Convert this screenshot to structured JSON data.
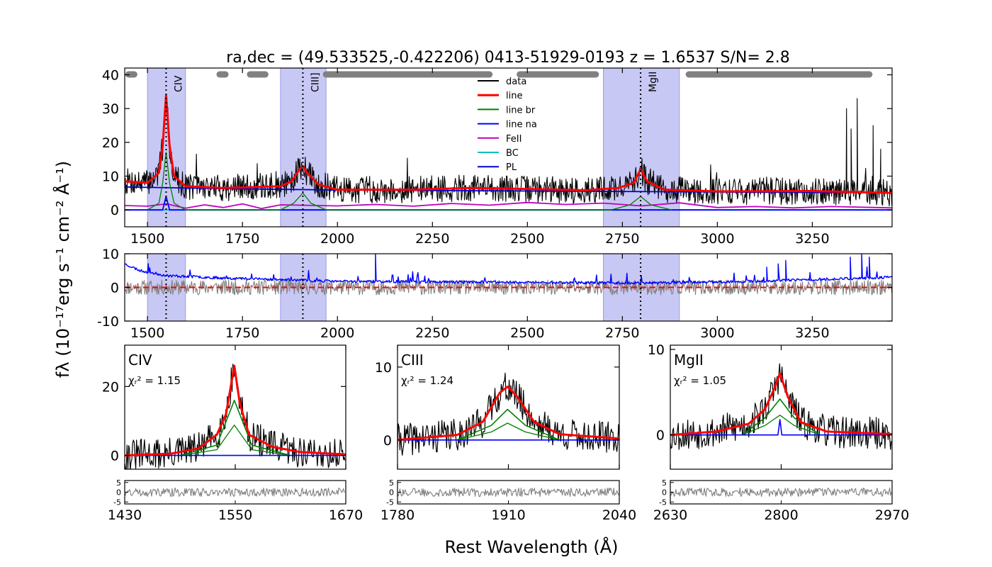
{
  "figure": {
    "title": "ra,dec = (49.533525,-0.422206)   0413-51929-0193   z = 1.6537   S/N= 2.8",
    "ylabel": "fλ (10⁻¹⁷erg s⁻¹ cm⁻² Å⁻¹)",
    "xlabel": "Rest Wavelength (Å)"
  },
  "colors": {
    "data": "#000000",
    "line": "#ff0000",
    "line_br": "#008000",
    "line_na": "#0000ff",
    "FeII": "#bf00bf",
    "BC": "#00bfbf",
    "PL": "#0000cd",
    "shade": "#c8c8f4",
    "windows": "#808080",
    "resid": "#808080",
    "error": "#0000ff",
    "zero": "#ff0000"
  },
  "chart_data": [
    {
      "id": "top",
      "type": "line",
      "xlim": [
        1440,
        3460
      ],
      "ylim": [
        -5,
        42
      ],
      "xticks": [
        1500,
        1750,
        2000,
        2250,
        2500,
        2750,
        3000,
        3250
      ],
      "yticks": [
        0,
        10,
        20,
        30,
        40
      ],
      "shaded_regions": [
        [
          1500,
          1600
        ],
        [
          1850,
          1970
        ],
        [
          2700,
          2900
        ]
      ],
      "line_markers": [
        {
          "label": "CIV",
          "x": 1549
        },
        {
          "label": "CIII]",
          "x": 1909
        },
        {
          "label": "MgII",
          "x": 2798
        }
      ],
      "continuum_windows": [
        [
          1450,
          1465
        ],
        [
          1690,
          1705
        ],
        [
          1770,
          1810
        ],
        [
          1970,
          2400
        ],
        [
          2480,
          2680
        ],
        [
          2925,
          3400
        ]
      ],
      "legend": {
        "position": "upper-center",
        "entries": [
          "data",
          "line",
          "line br",
          "line na",
          "FeII",
          "BC",
          "PL"
        ]
      },
      "series": [
        {
          "name": "data",
          "points": [
            [
              1440,
              8.5
            ],
            [
              1500,
              8.0
            ],
            [
              1530,
              9.5
            ],
            [
              1549,
              36.0
            ],
            [
              1560,
              10.0
            ],
            [
              1600,
              7.0
            ],
            [
              1700,
              6.5
            ],
            [
              1880,
              7.0
            ],
            [
              1909,
              17.0
            ],
            [
              1930,
              7.0
            ],
            [
              2100,
              5.5
            ],
            [
              2300,
              6.0
            ],
            [
              2500,
              6.0
            ],
            [
              2700,
              6.0
            ],
            [
              2798,
              11.0
            ],
            [
              2850,
              6.0
            ],
            [
              3000,
              5.0
            ],
            [
              3250,
              5.0
            ],
            [
              3460,
              5.0
            ]
          ]
        },
        {
          "name": "line",
          "points": [
            [
              1440,
              8.5
            ],
            [
              1500,
              8.0
            ],
            [
              1530,
              11.0
            ],
            [
              1540,
              19.0
            ],
            [
              1549,
              34.0
            ],
            [
              1558,
              19.0
            ],
            [
              1570,
              10.0
            ],
            [
              1600,
              7.0
            ],
            [
              1700,
              6.5
            ],
            [
              1850,
              7.0
            ],
            [
              1880,
              8.5
            ],
            [
              1900,
              12.0
            ],
            [
              1909,
              13.0
            ],
            [
              1920,
              11.0
            ],
            [
              1950,
              7.5
            ],
            [
              2000,
              6.0
            ],
            [
              2200,
              6.0
            ],
            [
              2350,
              6.5
            ],
            [
              2500,
              6.2
            ],
            [
              2650,
              5.8
            ],
            [
              2740,
              6.5
            ],
            [
              2780,
              8.0
            ],
            [
              2798,
              12.0
            ],
            [
              2815,
              8.5
            ],
            [
              2860,
              6.0
            ],
            [
              3000,
              5.5
            ],
            [
              3250,
              5.6
            ],
            [
              3460,
              5.0
            ]
          ]
        },
        {
          "name": "line br",
          "points": [
            [
              1500,
              0
            ],
            [
              1530,
              2.0
            ],
            [
              1540,
              8.0
            ],
            [
              1549,
              17.0
            ],
            [
              1558,
              8.0
            ],
            [
              1570,
              2.0
            ],
            [
              1600,
              0
            ],
            [
              1850,
              0
            ],
            [
              1885,
              2.0
            ],
            [
              1909,
              5.0
            ],
            [
              1930,
              2.0
            ],
            [
              1970,
              0
            ],
            [
              2720,
              0
            ],
            [
              2770,
              1.5
            ],
            [
              2798,
              4.0
            ],
            [
              2825,
              1.5
            ],
            [
              2880,
              0
            ]
          ]
        },
        {
          "name": "line na",
          "points": [
            [
              1440,
              0
            ],
            [
              1540,
              0
            ],
            [
              1549,
              4.0
            ],
            [
              1558,
              0
            ],
            [
              3460,
              0
            ]
          ]
        },
        {
          "name": "FeII",
          "points": [
            [
              1440,
              1.3
            ],
            [
              1500,
              1.1
            ],
            [
              1550,
              1.8
            ],
            [
              1600,
              0.5
            ],
            [
              1650,
              1.5
            ],
            [
              1700,
              0.7
            ],
            [
              1750,
              1.8
            ],
            [
              1800,
              0.4
            ],
            [
              1850,
              1.5
            ],
            [
              2000,
              1.2
            ],
            [
              2100,
              1.6
            ],
            [
              2200,
              1.1
            ],
            [
              2300,
              1.9
            ],
            [
              2400,
              1.4
            ],
            [
              2500,
              2.2
            ],
            [
              2600,
              1.6
            ],
            [
              2700,
              2.0
            ],
            [
              2800,
              1.2
            ],
            [
              2900,
              2.1
            ],
            [
              3000,
              0.7
            ],
            [
              3100,
              1.0
            ],
            [
              3200,
              0.6
            ],
            [
              3300,
              1.0
            ],
            [
              3460,
              0.6
            ]
          ]
        },
        {
          "name": "BC",
          "points": [
            [
              1440,
              0
            ],
            [
              3460,
              0
            ]
          ]
        },
        {
          "name": "PL",
          "points": [
            [
              1440,
              6.8
            ],
            [
              1700,
              6.3
            ],
            [
              2000,
              5.9
            ],
            [
              2500,
              5.6
            ],
            [
              3000,
              5.3
            ],
            [
              3460,
              5.1
            ]
          ]
        }
      ]
    },
    {
      "id": "residual",
      "type": "line",
      "xlim": [
        1440,
        3460
      ],
      "ylim": [
        -10,
        10
      ],
      "xticks": [
        1500,
        1750,
        2000,
        2250,
        2500,
        2750,
        3000,
        3250
      ],
      "yticks": [
        -10,
        0,
        10
      ],
      "shaded_regions": [
        [
          1500,
          1600
        ],
        [
          1850,
          1970
        ],
        [
          2700,
          2900
        ]
      ],
      "line_markers": [
        {
          "x": 1549
        },
        {
          "x": 1909
        },
        {
          "x": 2798
        }
      ],
      "series": [
        {
          "name": "residual",
          "points": [
            [
              1440,
              0
            ],
            [
              3460,
              0
            ]
          ]
        },
        {
          "name": "error",
          "points": [
            [
              1440,
              7.0
            ],
            [
              1480,
              5.0
            ],
            [
              1550,
              3.5
            ],
            [
              1700,
              2.8
            ],
            [
              2000,
              1.8
            ],
            [
              2500,
              1.5
            ],
            [
              2800,
              1.3
            ],
            [
              3100,
              1.8
            ],
            [
              3300,
              2.5
            ],
            [
              3460,
              3.0
            ]
          ]
        },
        {
          "name": "zero",
          "points": [
            [
              1440,
              0
            ],
            [
              3460,
              0
            ]
          ]
        }
      ]
    },
    {
      "id": "civ",
      "type": "line",
      "label": "CIV",
      "chi2": "1.15",
      "xlim": [
        1430,
        1670
      ],
      "ylim": [
        -4,
        32
      ],
      "xticks": [
        1430,
        1550,
        1670
      ],
      "yticks": [
        0,
        20
      ],
      "series": [
        {
          "name": "line",
          "points": [
            [
              1430,
              0
            ],
            [
              1480,
              0.5
            ],
            [
              1510,
              2.0
            ],
            [
              1530,
              6.0
            ],
            [
              1540,
              12.0
            ],
            [
              1549,
              26.0
            ],
            [
              1555,
              15.0
            ],
            [
              1565,
              6.0
            ],
            [
              1590,
              2.5
            ],
            [
              1620,
              1.0
            ],
            [
              1670,
              0.3
            ]
          ]
        },
        {
          "name": "line br",
          "points": [
            [
              1490,
              0
            ],
            [
              1530,
              3.0
            ],
            [
              1549,
              16.0
            ],
            [
              1568,
              3.0
            ],
            [
              1610,
              0
            ]
          ]
        },
        {
          "name": "line na",
          "points": [
            [
              1430,
              0
            ],
            [
              1670,
              0
            ]
          ]
        }
      ],
      "resid_yticks": [
        -5,
        0,
        5
      ]
    },
    {
      "id": "ciii",
      "type": "line",
      "label": "CIII",
      "chi2": "1.24",
      "xlim": [
        1780,
        2040
      ],
      "ylim": [
        -4,
        13
      ],
      "xticks": [
        1780,
        1910,
        2040
      ],
      "yticks": [
        0,
        10
      ],
      "series": [
        {
          "name": "line",
          "points": [
            [
              1780,
              0
            ],
            [
              1850,
              0.7
            ],
            [
              1880,
              2.5
            ],
            [
              1900,
              6.5
            ],
            [
              1909,
              7.3
            ],
            [
              1920,
              6.0
            ],
            [
              1940,
              2.5
            ],
            [
              1970,
              0.8
            ],
            [
              2040,
              0.2
            ]
          ]
        },
        {
          "name": "line br",
          "points": [
            [
              1850,
              0
            ],
            [
              1890,
              2.0
            ],
            [
              1909,
              4.2
            ],
            [
              1930,
              2.0
            ],
            [
              1970,
              0
            ]
          ]
        },
        {
          "name": "line na",
          "points": [
            [
              1780,
              0
            ],
            [
              2040,
              0
            ]
          ]
        }
      ],
      "resid_yticks": [
        -5,
        0,
        5
      ]
    },
    {
      "id": "mgii",
      "type": "line",
      "label": "MgII",
      "chi2": "1.05",
      "xlim": [
        2630,
        2970
      ],
      "ylim": [
        -4,
        10.5
      ],
      "xticks": [
        2630,
        2800,
        2970
      ],
      "yticks": [
        0,
        10
      ],
      "series": [
        {
          "name": "line",
          "points": [
            [
              2630,
              0
            ],
            [
              2700,
              0.4
            ],
            [
              2750,
              1.3
            ],
            [
              2775,
              3.0
            ],
            [
              2790,
              5.5
            ],
            [
              2798,
              7.2
            ],
            [
              2810,
              4.5
            ],
            [
              2830,
              1.5
            ],
            [
              2870,
              0.4
            ],
            [
              2970,
              0.1
            ]
          ]
        },
        {
          "name": "line br",
          "points": [
            [
              2740,
              0
            ],
            [
              2775,
              2.0
            ],
            [
              2798,
              4.2
            ],
            [
              2820,
              2.0
            ],
            [
              2860,
              0
            ]
          ]
        },
        {
          "name": "line na",
          "points": [
            [
              2630,
              0
            ],
            [
              2795,
              0
            ],
            [
              2798,
              1.8
            ],
            [
              2801,
              0
            ],
            [
              2970,
              0
            ]
          ]
        }
      ],
      "resid_yticks": [
        -5,
        0,
        5
      ]
    }
  ]
}
